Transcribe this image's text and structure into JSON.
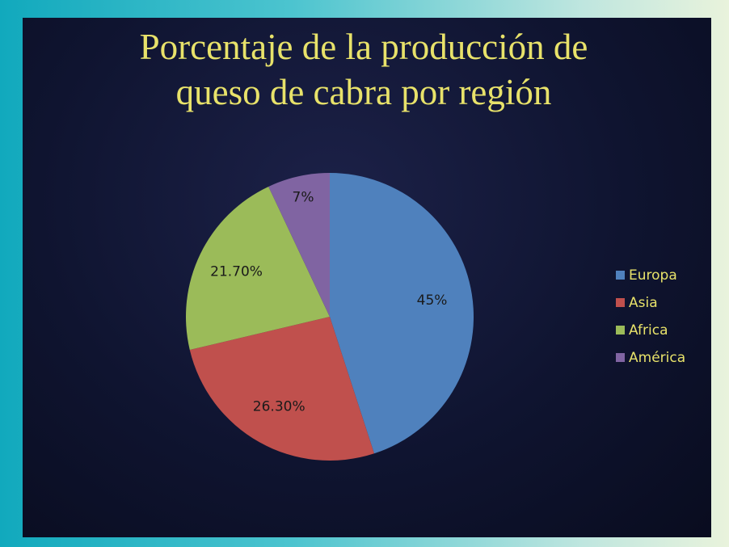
{
  "chart_data": {
    "type": "pie",
    "title": "Porcentaje de la producción de queso de cabra por región",
    "categories": [
      "Europa",
      "Asia",
      "Africa",
      "América"
    ],
    "values": [
      45,
      26.3,
      21.7,
      7
    ],
    "value_labels": [
      "45%",
      "26.30%",
      "21.70%",
      "7%"
    ],
    "colors": [
      "#4f81bd",
      "#c0504d",
      "#9bbb59",
      "#8064a2"
    ],
    "legend": "right"
  }
}
